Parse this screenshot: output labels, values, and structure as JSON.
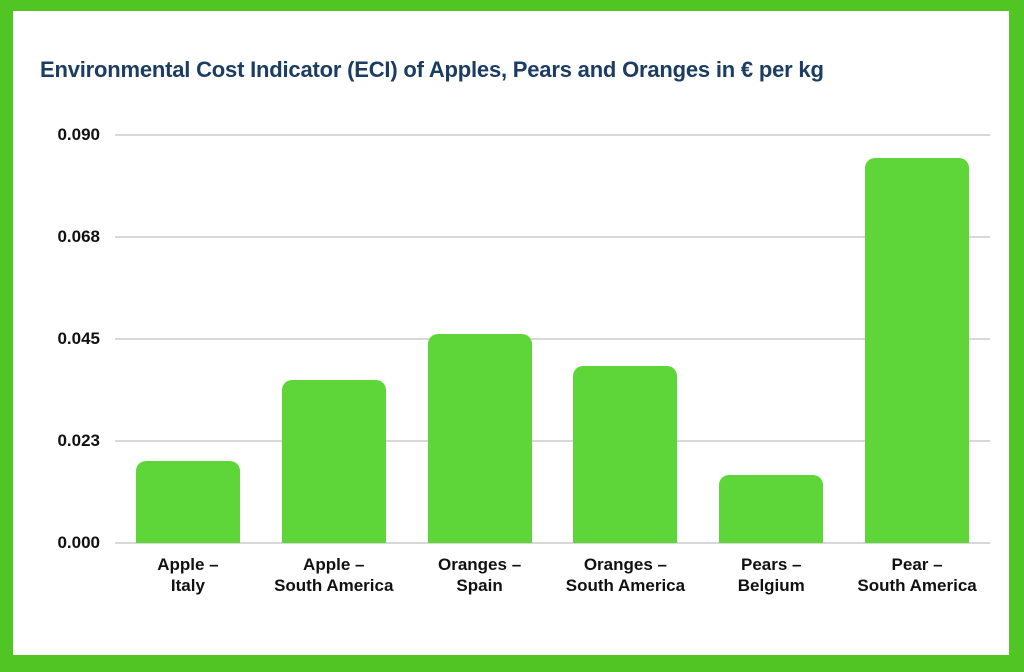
{
  "chart_data": {
    "type": "bar",
    "title": "Environmental Cost Indicator (ECI) of Apples, Pears and Oranges in € per kg",
    "categories": [
      "Apple – Italy",
      "Apple – South America",
      "Oranges – Spain",
      "Oranges – South America",
      "Pears – Belgium",
      "Pear – South America"
    ],
    "category_lines": [
      [
        "Apple –",
        "Italy"
      ],
      [
        "Apple –",
        "South America"
      ],
      [
        "Oranges –",
        "Spain"
      ],
      [
        "Oranges –",
        "South America"
      ],
      [
        "Pears –",
        "Belgium"
      ],
      [
        "Pear –",
        "South America"
      ]
    ],
    "values": [
      0.018,
      0.036,
      0.046,
      0.039,
      0.015,
      0.085
    ],
    "xlabel": "",
    "ylabel": "",
    "ylim": [
      0,
      0.09
    ],
    "y_ticks": [
      "0.090",
      "0.068",
      "0.045",
      "0.023",
      "0.000"
    ],
    "grid": "horizontal",
    "legend": "none",
    "unit": "€ per kg"
  },
  "style": {
    "frame_color": "#50c524",
    "bar_color": "#5ed63a",
    "title_color": "#1b3c63",
    "tick_label_color": "#111111",
    "gridline_color": "#d8d8d8",
    "background": "#ffffff"
  }
}
